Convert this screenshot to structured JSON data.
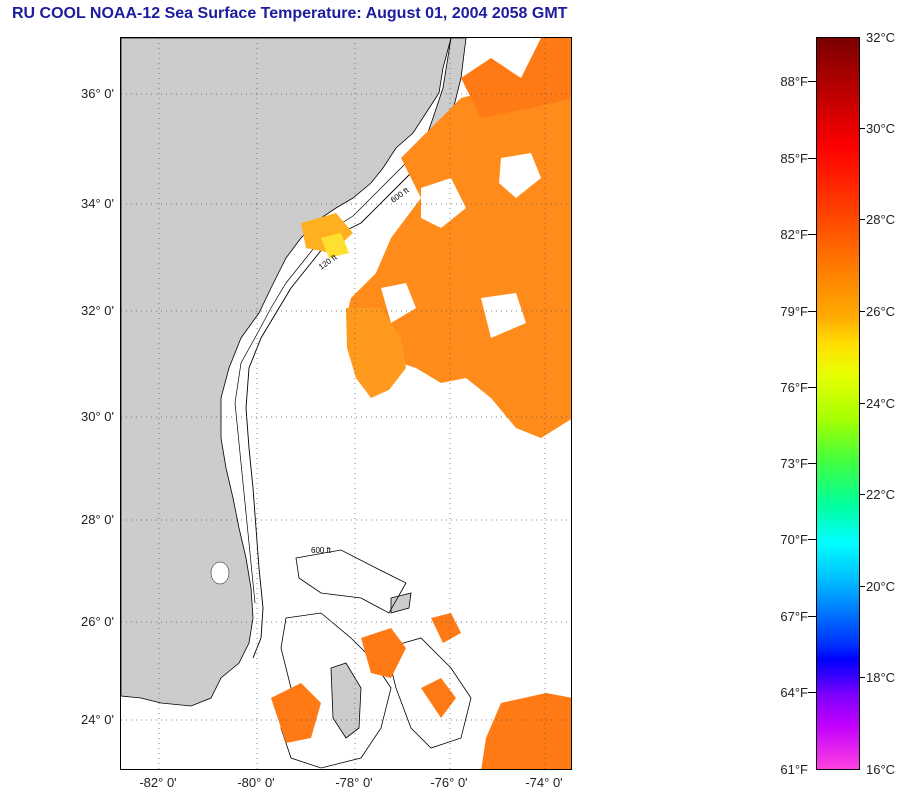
{
  "title": "RU COOL  NOAA-12  Sea Surface Temperature:  August 01, 2004 2058 GMT",
  "latitude_labels": [
    "36° 0'",
    "34° 0'",
    "32° 0'",
    "30° 0'",
    "28° 0'",
    "26° 0'",
    "24° 0'"
  ],
  "longitude_labels": [
    "-82° 0'",
    "-80° 0'",
    "-78° 0'",
    "-76° 0'",
    "-74° 0'"
  ],
  "colorbar": {
    "fahrenheit_labels": [
      "88°F",
      "85°F",
      "82°F",
      "79°F",
      "76°F",
      "73°F",
      "70°F",
      "67°F",
      "64°F",
      "61°F"
    ],
    "celsius_labels": [
      "32°C",
      "30°C",
      "28°C",
      "26°C",
      "24°C",
      "22°C",
      "20°C",
      "18°C",
      "16°C"
    ]
  },
  "isobath_labels": [
    "120 ft",
    "600 ft"
  ],
  "colors": {
    "title": "#1c1c9c",
    "land": "#cccccc",
    "sst_warm": "#ff8c1a",
    "sst_hot": "#ff5a1a",
    "grid": "#555555"
  }
}
